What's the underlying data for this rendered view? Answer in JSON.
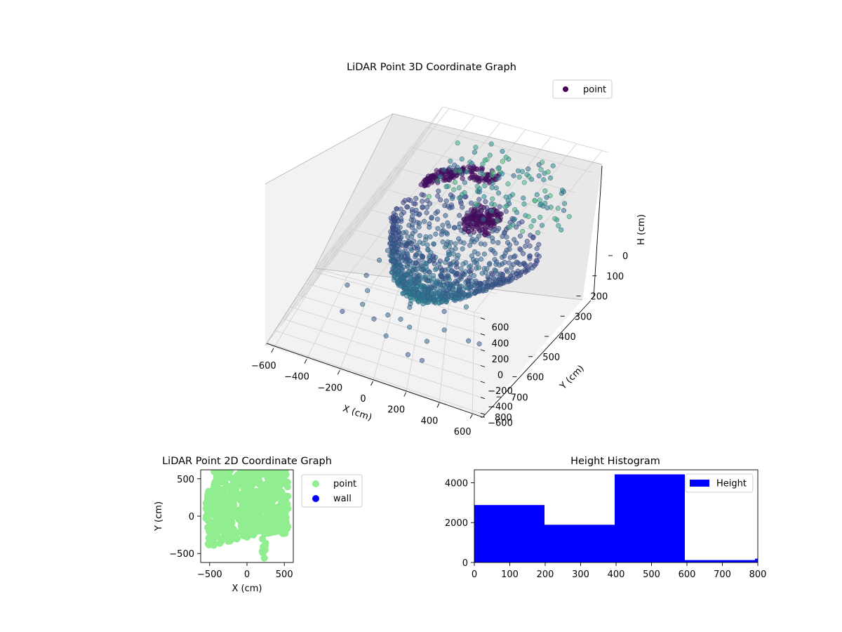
{
  "chart_data": [
    {
      "type": "scatter3d",
      "title": "LiDAR Point 3D Coordinate Graph",
      "xlabel": "X (cm)",
      "ylabel": "Y (cm)",
      "zlabel": "H (cm)",
      "xlim": [
        -650,
        650
      ],
      "ylim": [
        -650,
        650
      ],
      "zlim": [
        0,
        800
      ],
      "z_inverted": true,
      "x_ticks": [
        -600,
        -400,
        -200,
        0,
        200,
        400,
        600
      ],
      "y_ticks": [
        -600,
        -400,
        -200,
        0,
        200,
        400,
        600
      ],
      "z_ticks": [
        0,
        100,
        200,
        300,
        400,
        500,
        600,
        700,
        800
      ],
      "grid": true,
      "legend": {
        "placement": "upper-right",
        "entries": [
          {
            "label": "point",
            "color": "#440154"
          }
        ]
      },
      "colormap": "viridis",
      "series": [
        {
          "name": "point",
          "description": "dense dome/bowl of points centered near origin, height 250-600 cm, with arc of points near the top at 100-200 cm and sparse outliers near 0-100 cm"
        }
      ]
    },
    {
      "type": "scatter",
      "title": "LiDAR Point 2D Coordinate Graph",
      "xlabel": "X (cm)",
      "ylabel": "Y (cm)",
      "xlim": [
        -620,
        620
      ],
      "ylim": [
        -620,
        620
      ],
      "x_ticks": [
        -500,
        0,
        500
      ],
      "y_ticks": [
        -500,
        0,
        500
      ],
      "legend": {
        "placement": "outside-right",
        "entries": [
          {
            "label": "point",
            "color": "#90ee90"
          },
          {
            "label": "wall",
            "color": "#0000ff"
          }
        ]
      }
    },
    {
      "type": "histogram",
      "title": "Height Histogram",
      "xlabel": "",
      "ylabel": "",
      "xlim": [
        0,
        800
      ],
      "ylim": [
        0,
        4650
      ],
      "x_ticks": [
        0,
        100,
        200,
        300,
        400,
        500,
        600,
        700,
        800
      ],
      "y_ticks": [
        0,
        2000,
        4000
      ],
      "bins": [
        {
          "start": 0,
          "end": 198,
          "count": 2880
        },
        {
          "start": 198,
          "end": 396,
          "count": 1890
        },
        {
          "start": 396,
          "end": 594,
          "count": 4420
        },
        {
          "start": 594,
          "end": 792,
          "count": 120
        },
        {
          "start": 792,
          "end": 990,
          "count": 190
        }
      ],
      "color": "#0000ff",
      "legend": {
        "placement": "upper-right",
        "entries": [
          {
            "label": "Height",
            "color": "#0000ff"
          }
        ]
      }
    }
  ]
}
